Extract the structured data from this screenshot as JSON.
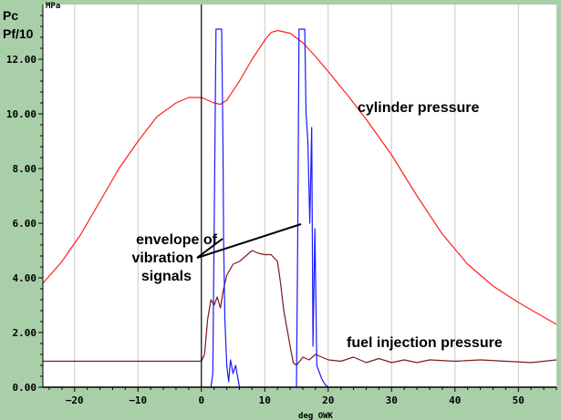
{
  "chart_data": {
    "type": "line",
    "y_axis_label_line1": "Pc",
    "y_axis_label_line2": "Pf/10",
    "y_unit": "MPa",
    "xlabel": "deg OWK",
    "xlim": [
      -25,
      56
    ],
    "ylim": [
      0,
      14
    ],
    "x_ticks": [
      -20,
      -10,
      0,
      10,
      20,
      30,
      40,
      50
    ],
    "y_ticks": [
      0,
      2,
      4,
      6,
      8,
      10,
      12
    ],
    "y_tick_labels": [
      "0.00",
      "2.00",
      "4.00",
      "6.00",
      "8.00",
      "10.00",
      "12.00"
    ],
    "grid": "vertical-lines",
    "annotations": {
      "cylinder": "cylinder pressure",
      "fuel": "fuel injection pressure",
      "envelope_line1": "envelope of",
      "envelope_line2": "vibration",
      "envelope_line3": "signals"
    },
    "colors": {
      "background": "#a9cfa9",
      "plot": "#ffffff",
      "cylinder": "#ff2020",
      "fuel": "#7a1a1a",
      "vibration": "#1a1aff",
      "axis": "#000000",
      "grid": "#c8c8c8"
    },
    "series": [
      {
        "key": "cylinder",
        "x": [
          -25,
          -22,
          -19,
          -16,
          -13,
          -10,
          -7,
          -4,
          -2,
          0,
          1,
          2,
          3,
          4,
          6,
          8,
          10,
          11,
          12,
          14,
          16,
          18,
          20,
          23,
          26,
          30,
          34,
          38,
          42,
          46,
          50,
          53,
          56
        ],
        "y": [
          3.8,
          4.6,
          5.6,
          6.8,
          8.0,
          9.0,
          9.9,
          10.4,
          10.6,
          10.6,
          10.5,
          10.4,
          10.35,
          10.5,
          11.2,
          12.0,
          12.7,
          12.98,
          13.05,
          12.95,
          12.6,
          12.1,
          11.55,
          10.7,
          9.8,
          8.5,
          7.0,
          5.6,
          4.5,
          3.7,
          3.1,
          2.7,
          2.3
        ]
      },
      {
        "key": "fuel",
        "x": [
          -25,
          -15,
          -5,
          0,
          0.5,
          1.0,
          1.5,
          2.0,
          2.5,
          3.0,
          3.5,
          4.0,
          5.0,
          6.0,
          7.0,
          8.0,
          9.0,
          10.0,
          11.0,
          12.0,
          12.5,
          13.0,
          14.0,
          14.5,
          15.0,
          16.0,
          17.0,
          18.0,
          20,
          22,
          24,
          26,
          28,
          30,
          32,
          34,
          36,
          40,
          44,
          48,
          52,
          56
        ],
        "y": [
          0.95,
          0.95,
          0.95,
          0.95,
          1.2,
          2.5,
          3.2,
          3.0,
          3.3,
          2.9,
          3.6,
          4.1,
          4.5,
          4.6,
          4.8,
          5.0,
          4.9,
          4.85,
          4.85,
          4.6,
          3.8,
          2.8,
          1.5,
          0.9,
          0.8,
          1.1,
          1.0,
          1.2,
          1.0,
          0.95,
          1.1,
          0.9,
          1.05,
          0.9,
          1.0,
          0.9,
          1.0,
          0.95,
          1.0,
          0.95,
          0.9,
          1.0
        ]
      },
      {
        "key": "vibration1",
        "x": [
          1.5,
          1.8,
          2.0,
          2.3,
          2.6,
          2.8,
          3.2,
          3.4,
          3.5,
          3.7,
          4.0,
          4.3,
          4.6,
          5.0,
          5.4,
          6.0
        ],
        "y": [
          0,
          0.5,
          5.5,
          13.1,
          13.1,
          13.1,
          13.1,
          9.0,
          5.5,
          2.5,
          0.8,
          0.2,
          1.0,
          0.5,
          0.8,
          0.0
        ]
      },
      {
        "key": "vibration2",
        "x": [
          15.0,
          15.2,
          15.4,
          15.8,
          16.3,
          16.5,
          16.8,
          17.1,
          17.4,
          17.6,
          17.9,
          18.2,
          18.5,
          19.0,
          19.5,
          20.0
        ],
        "y": [
          0,
          5.5,
          13.1,
          13.1,
          13.1,
          10.0,
          9.0,
          6.0,
          9.5,
          1.5,
          5.8,
          0.8,
          0.6,
          0.3,
          0.1,
          0.0
        ]
      }
    ]
  }
}
